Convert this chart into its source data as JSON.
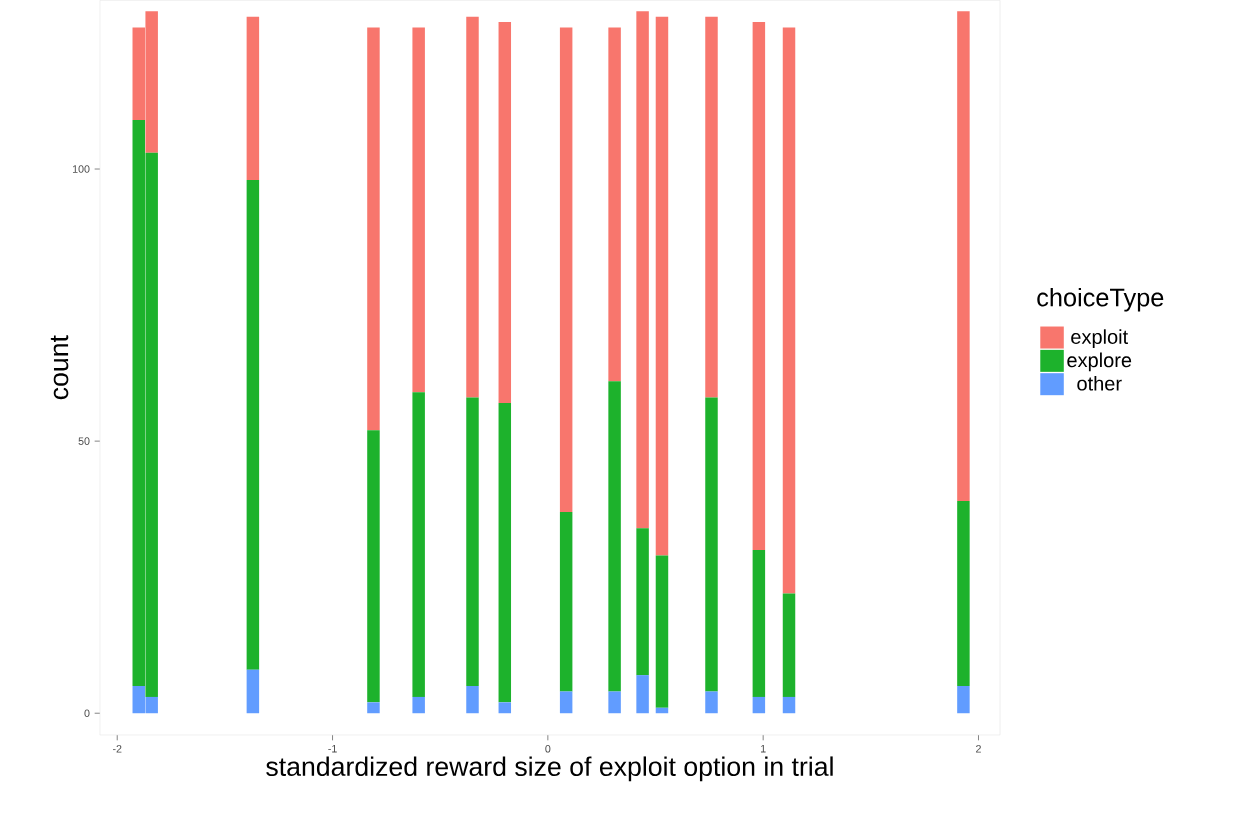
{
  "chart_data": {
    "type": "bar",
    "stacked": true,
    "xlabel": "standardized reward size of exploit option in trial",
    "ylabel": "count",
    "legend_title": "choiceType",
    "x": [
      -1.9,
      -1.84,
      -1.37,
      -0.81,
      -0.6,
      -0.35,
      -0.2,
      0.085,
      0.31,
      0.44,
      0.53,
      0.76,
      0.98,
      1.12,
      1.93
    ],
    "series": [
      {
        "name": "other",
        "color": "#619cff",
        "values": [
          5,
          3,
          8,
          2,
          3,
          5,
          2,
          4,
          4,
          7,
          1,
          4,
          3,
          3,
          5
        ]
      },
      {
        "name": "explore",
        "color": "#1db22c",
        "values": [
          104,
          100,
          90,
          50,
          56,
          53,
          55,
          33,
          57,
          27,
          28,
          54,
          27,
          19,
          34
        ]
      },
      {
        "name": "exploit",
        "color": "#f8766d",
        "values": [
          17,
          26,
          30,
          74,
          67,
          70,
          70,
          89,
          65,
          95,
          99,
          70,
          97,
          104,
          90
        ]
      }
    ],
    "xlim": [
      -2.08,
      2.1
    ],
    "ylim": [
      -4,
      131
    ],
    "xticks": [
      -2,
      -1,
      0,
      1,
      2
    ],
    "yticks": [
      0,
      50,
      100
    ],
    "grid": false,
    "legend": "right"
  }
}
